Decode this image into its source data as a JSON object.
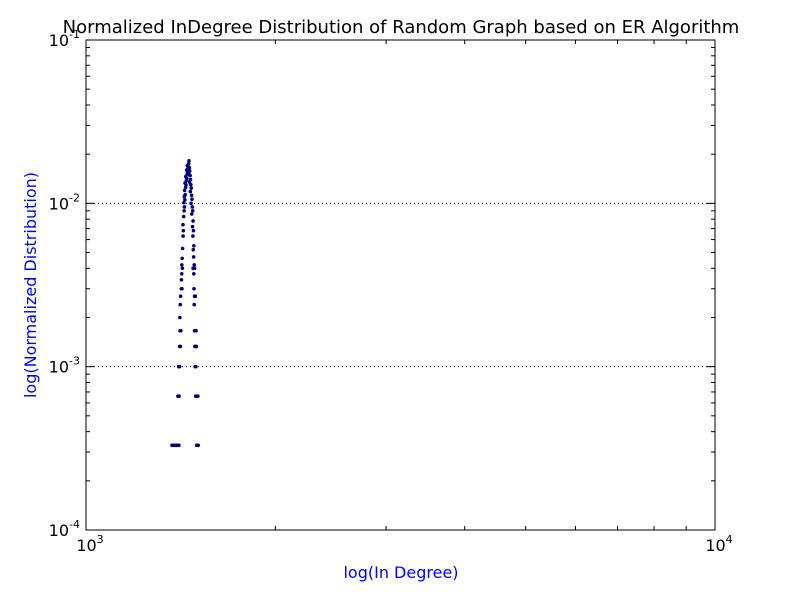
{
  "chart_data": {
    "type": "scatter",
    "title": "Normalized InDegree Distribution of Random Graph based on ER Algorithm",
    "xlabel": "log(In Degree)",
    "ylabel": "log(Normalized Distribution)",
    "x_scale": "log",
    "y_scale": "log",
    "xlim": [
      1000,
      10000
    ],
    "ylim": [
      0.0001,
      0.1
    ],
    "x_ticks": [
      {
        "value": 1000,
        "base": "10",
        "exp": "3"
      },
      {
        "value": 10000,
        "base": "10",
        "exp": "4"
      }
    ],
    "y_ticks": [
      {
        "value": 0.0001,
        "base": "10",
        "exp": "-4"
      },
      {
        "value": 0.001,
        "base": "10",
        "exp": "-3"
      },
      {
        "value": 0.01,
        "base": "10",
        "exp": "-2"
      },
      {
        "value": 0.1,
        "base": "10",
        "exp": "-1"
      }
    ],
    "grid": "y-major-dotted",
    "legend": "none",
    "colors": {
      "marker": "#000080",
      "axis_label": "#0000ff",
      "grid": "#000000"
    },
    "series": [
      {
        "marker": "dot",
        "points": [
          [
            1370,
            0.00033
          ],
          [
            1378,
            0.00033
          ],
          [
            1386,
            0.00033
          ],
          [
            1393,
            0.00033
          ],
          [
            1399,
            0.00033
          ],
          [
            1405,
            0.00033
          ],
          [
            1400,
            0.00066
          ],
          [
            1406,
            0.00066
          ],
          [
            1404,
            0.001
          ],
          [
            1409,
            0.001
          ],
          [
            1409,
            0.00133
          ],
          [
            1413,
            0.00133
          ],
          [
            1411,
            0.00166
          ],
          [
            1415,
            0.00166
          ],
          [
            1410,
            0.002
          ],
          [
            1412,
            0.0024
          ],
          [
            1414,
            0.0027
          ],
          [
            1418,
            0.003
          ],
          [
            1421,
            0.003
          ],
          [
            1418,
            0.0034
          ],
          [
            1420,
            0.0037
          ],
          [
            1423,
            0.004
          ],
          [
            1420,
            0.0042
          ],
          [
            1422,
            0.0046
          ],
          [
            1424,
            0.0053
          ],
          [
            1427,
            0.0063
          ],
          [
            1428,
            0.0068
          ],
          [
            1426,
            0.0074
          ],
          [
            1430,
            0.0083
          ],
          [
            1432,
            0.009
          ],
          [
            1434,
            0.0095
          ],
          [
            1431,
            0.0101
          ],
          [
            1436,
            0.0105
          ],
          [
            1433,
            0.011
          ],
          [
            1438,
            0.0113
          ],
          [
            1435,
            0.012
          ],
          [
            1440,
            0.0125
          ],
          [
            1442,
            0.013
          ],
          [
            1437,
            0.0133
          ],
          [
            1444,
            0.0138
          ],
          [
            1446,
            0.0142
          ],
          [
            1441,
            0.0146
          ],
          [
            1448,
            0.015
          ],
          [
            1450,
            0.0155
          ],
          [
            1445,
            0.016
          ],
          [
            1452,
            0.0163
          ],
          [
            1454,
            0.0168
          ],
          [
            1449,
            0.017
          ],
          [
            1456,
            0.0175
          ],
          [
            1458,
            0.0182
          ],
          [
            1460,
            0.0165
          ],
          [
            1462,
            0.0158
          ],
          [
            1457,
            0.0152
          ],
          [
            1464,
            0.0148
          ],
          [
            1466,
            0.014
          ],
          [
            1461,
            0.0135
          ],
          [
            1468,
            0.013
          ],
          [
            1470,
            0.0124
          ],
          [
            1465,
            0.0118
          ],
          [
            1472,
            0.0112
          ],
          [
            1474,
            0.0106
          ],
          [
            1469,
            0.01
          ],
          [
            1476,
            0.0095
          ],
          [
            1478,
            0.009
          ],
          [
            1473,
            0.0086
          ],
          [
            1480,
            0.0078
          ],
          [
            1477,
            0.0072
          ],
          [
            1482,
            0.0068
          ],
          [
            1479,
            0.0063
          ],
          [
            1484,
            0.0055
          ],
          [
            1481,
            0.0052
          ],
          [
            1483,
            0.0047
          ],
          [
            1486,
            0.0042
          ],
          [
            1480,
            0.004
          ],
          [
            1488,
            0.004
          ],
          [
            1484,
            0.0037
          ],
          [
            1485,
            0.003
          ],
          [
            1488,
            0.0027
          ],
          [
            1492,
            0.0027
          ],
          [
            1486,
            0.0024
          ],
          [
            1488,
            0.00166
          ],
          [
            1492,
            0.00166
          ],
          [
            1496,
            0.00166
          ],
          [
            1490,
            0.00133
          ],
          [
            1494,
            0.00133
          ],
          [
            1498,
            0.00133
          ],
          [
            1491,
            0.001
          ],
          [
            1495,
            0.001
          ],
          [
            1494,
            0.00066
          ],
          [
            1498,
            0.00066
          ],
          [
            1502,
            0.00066
          ],
          [
            1506,
            0.00066
          ],
          [
            1500,
            0.00033
          ],
          [
            1504,
            0.00033
          ],
          [
            1508,
            0.00033
          ]
        ]
      }
    ]
  }
}
